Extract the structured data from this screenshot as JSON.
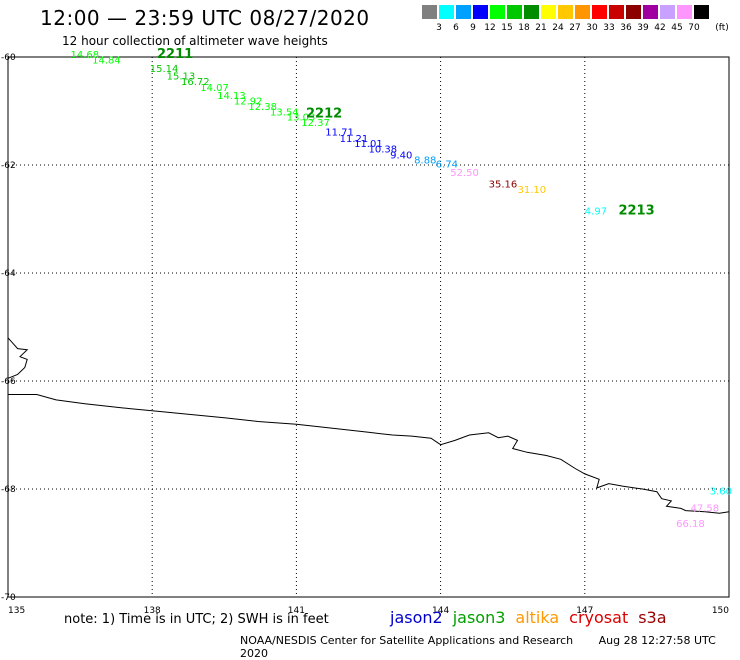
{
  "title": "12:00 — 23:59 UTC 08/27/2020",
  "subtitle": "12 hour collection of altimeter wave heights",
  "note": "note: 1) Time is in UTC; 2) SWH is in feet",
  "satellites": [
    {
      "name": "jason2",
      "color": "#0000cc"
    },
    {
      "name": "jason3",
      "color": "#00a000"
    },
    {
      "name": "altika",
      "color": "#ff9900"
    },
    {
      "name": "cryosat",
      "color": "#dd0000"
    },
    {
      "name": "s3a",
      "color": "#990000"
    }
  ],
  "footer": {
    "credit": "NOAA/NESDIS Center for Satellite Applications and Research",
    "timestamp": "Aug 28 12:27:58 UTC 2020"
  },
  "color_scale": {
    "unit": "(ft)",
    "labels": [
      "3",
      "6",
      "9",
      "12",
      "15",
      "18",
      "21",
      "24",
      "27",
      "30",
      "33",
      "36",
      "39",
      "42",
      "45",
      "70"
    ],
    "colors": [
      "#808080",
      "#00ffff",
      "#00a0ff",
      "#0000ff",
      "#00ff00",
      "#00c800",
      "#008c00",
      "#ffff00",
      "#ffc800",
      "#ff9600",
      "#ff0000",
      "#c80000",
      "#8c0000",
      "#a000a0",
      "#c8a0ff",
      "#ff96ff",
      "#000000"
    ]
  },
  "map": {
    "lon_range": [
      135,
      150
    ],
    "lat_range": [
      -70,
      -60
    ],
    "lon_ticks": [
      "135",
      "138",
      "141",
      "144",
      "147",
      "150"
    ],
    "lat_ticks": [
      "-60",
      "-62",
      "-64",
      "-66",
      "-68",
      "-70"
    ],
    "track_labels": [
      {
        "text": "2211",
        "lon": 138.1,
        "lat": -60.02,
        "color": "#008c00"
      },
      {
        "text": "2212",
        "lon": 141.2,
        "lat": -61.12,
        "color": "#008c00"
      },
      {
        "text": "2213",
        "lon": 147.7,
        "lat": -62.92,
        "color": "#008c00"
      }
    ],
    "wave_heights": [
      {
        "text": "14.68",
        "lon": 136.3,
        "lat": -60.02,
        "color": "#00ff00"
      },
      {
        "text": "14.84",
        "lon": 136.75,
        "lat": -60.12,
        "color": "#00ff00"
      },
      {
        "text": "15.14",
        "lon": 137.95,
        "lat": -60.28,
        "color": "#00c800"
      },
      {
        "text": "15.13",
        "lon": 138.3,
        "lat": -60.42,
        "color": "#00c800"
      },
      {
        "text": "16.72",
        "lon": 138.6,
        "lat": -60.52,
        "color": "#00c800"
      },
      {
        "text": "14.07",
        "lon": 139.0,
        "lat": -60.63,
        "color": "#00ff00"
      },
      {
        "text": "14.13",
        "lon": 139.35,
        "lat": -60.78,
        "color": "#00ff00"
      },
      {
        "text": "12.92",
        "lon": 139.7,
        "lat": -60.88,
        "color": "#00ff00"
      },
      {
        "text": "12.38",
        "lon": 140.0,
        "lat": -60.98,
        "color": "#00ff00"
      },
      {
        "text": "13.54",
        "lon": 140.45,
        "lat": -61.08,
        "color": "#00ff00"
      },
      {
        "text": "13.03",
        "lon": 140.8,
        "lat": -61.18,
        "color": "#00ff00"
      },
      {
        "text": "12.37",
        "lon": 141.1,
        "lat": -61.28,
        "color": "#00ff00"
      },
      {
        "text": "11.71",
        "lon": 141.6,
        "lat": -61.45,
        "color": "#0000ff"
      },
      {
        "text": "11.21",
        "lon": 141.9,
        "lat": -61.57,
        "color": "#0000ff"
      },
      {
        "text": "11.01",
        "lon": 142.2,
        "lat": -61.67,
        "color": "#0000ff"
      },
      {
        "text": "10.38",
        "lon": 142.5,
        "lat": -61.77,
        "color": "#0000ff"
      },
      {
        "text": "9.40",
        "lon": 142.95,
        "lat": -61.88,
        "color": "#0000ff"
      },
      {
        "text": "8.88",
        "lon": 143.45,
        "lat": -61.97,
        "color": "#00a0ff"
      },
      {
        "text": "6.74",
        "lon": 143.9,
        "lat": -62.05,
        "color": "#00a0ff"
      },
      {
        "text": "52.50",
        "lon": 144.2,
        "lat": -62.2,
        "color": "#ff96ff"
      },
      {
        "text": "35.16",
        "lon": 145.0,
        "lat": -62.42,
        "color": "#8c0000"
      },
      {
        "text": "31.10",
        "lon": 145.6,
        "lat": -62.52,
        "color": "#ffc800"
      },
      {
        "text": "4.97",
        "lon": 147.0,
        "lat": -62.92,
        "color": "#00ffff"
      },
      {
        "text": "3.60",
        "lon": 149.6,
        "lat": -68.1,
        "color": "#00ffff"
      },
      {
        "text": "47.58",
        "lon": 149.2,
        "lat": -68.42,
        "color": "#ff96ff"
      },
      {
        "text": "66.18",
        "lon": 148.9,
        "lat": -68.7,
        "color": "#ff96ff"
      }
    ],
    "coastline": [
      [
        135.0,
        -65.2
      ],
      [
        135.1,
        -65.3
      ],
      [
        135.2,
        -65.4
      ],
      [
        135.4,
        -65.42
      ],
      [
        135.25,
        -65.55
      ],
      [
        135.4,
        -65.6
      ],
      [
        135.35,
        -65.75
      ],
      [
        135.2,
        -65.88
      ],
      [
        135.0,
        -65.95
      ],
      [
        135.0,
        -66.25
      ],
      [
        135.6,
        -66.25
      ],
      [
        136.0,
        -66.35
      ],
      [
        136.6,
        -66.42
      ],
      [
        137.4,
        -66.5
      ],
      [
        138.0,
        -66.55
      ],
      [
        138.8,
        -66.62
      ],
      [
        139.5,
        -66.68
      ],
      [
        140.2,
        -66.75
      ],
      [
        141.0,
        -66.8
      ],
      [
        141.8,
        -66.88
      ],
      [
        142.5,
        -66.95
      ],
      [
        143.0,
        -67.0
      ],
      [
        143.4,
        -67.02
      ],
      [
        143.8,
        -67.06
      ],
      [
        144.0,
        -67.18
      ],
      [
        144.3,
        -67.1
      ],
      [
        144.6,
        -67.0
      ],
      [
        145.0,
        -66.96
      ],
      [
        145.2,
        -67.05
      ],
      [
        145.4,
        -67.02
      ],
      [
        145.6,
        -67.1
      ],
      [
        145.5,
        -67.25
      ],
      [
        145.8,
        -67.32
      ],
      [
        146.2,
        -67.38
      ],
      [
        146.5,
        -67.45
      ],
      [
        146.8,
        -67.62
      ],
      [
        147.0,
        -67.72
      ],
      [
        147.3,
        -67.82
      ],
      [
        147.25,
        -67.98
      ],
      [
        147.5,
        -67.9
      ],
      [
        147.8,
        -67.95
      ],
      [
        148.2,
        -68.0
      ],
      [
        148.5,
        -68.05
      ],
      [
        148.6,
        -68.18
      ],
      [
        148.8,
        -68.22
      ],
      [
        148.7,
        -68.32
      ],
      [
        149.0,
        -68.36
      ],
      [
        149.1,
        -68.4
      ],
      [
        149.5,
        -68.42
      ],
      [
        149.8,
        -68.45
      ],
      [
        150.0,
        -68.42
      ]
    ]
  }
}
